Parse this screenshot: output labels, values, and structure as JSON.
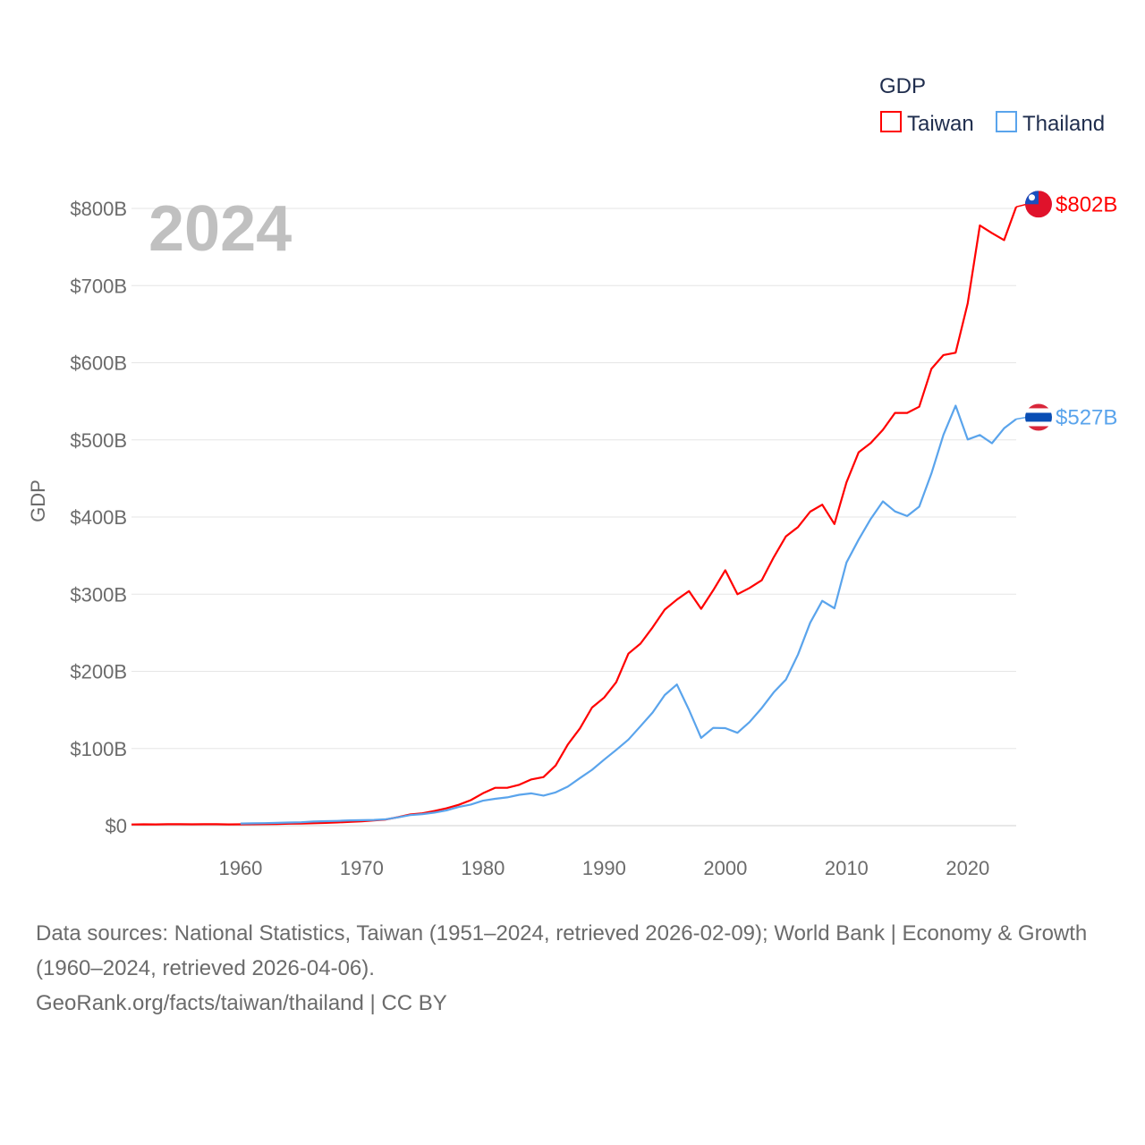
{
  "chart_data": {
    "type": "line",
    "title": "GDP",
    "ylabel": "GDP",
    "xlabel": "",
    "year_label": "2024",
    "xlim": [
      1951,
      2024
    ],
    "ylim": [
      0,
      800
    ],
    "y_unit": "billion USD",
    "grid": true,
    "legend_placement": "top-right",
    "legend_title": "GDP",
    "x_ticks": [
      1960,
      1970,
      1980,
      1990,
      2000,
      2010,
      2020
    ],
    "x_tick_labels": [
      "1960",
      "1970",
      "1980",
      "1990",
      "2000",
      "2010",
      "2020"
    ],
    "y_ticks": [
      0,
      100,
      200,
      300,
      400,
      500,
      600,
      700,
      800
    ],
    "y_tick_labels": [
      "$0",
      "$100B",
      "$200B",
      "$300B",
      "$400B",
      "$500B",
      "$600B",
      "$700B",
      "$800B"
    ],
    "series": [
      {
        "name": "Taiwan",
        "color": "#ff0000",
        "end_label": "$802B",
        "flag": "taiwan-flag",
        "start_year": 1951,
        "values": [
          1.5,
          1.7,
          1.6,
          1.8,
          1.9,
          1.7,
          1.8,
          1.8,
          1.6,
          1.7,
          1.8,
          2.0,
          2.2,
          2.5,
          2.8,
          3.1,
          3.6,
          4.2,
          4.9,
          5.7,
          6.7,
          8.0,
          11.0,
          14.5,
          16.0,
          19.0,
          22.5,
          27.0,
          33.0,
          42.0,
          49.0,
          49.0,
          53.0,
          60.0,
          63.0,
          78.0,
          105.0,
          126.0,
          153.0,
          166.0,
          186.0,
          223.0,
          236.0,
          257.0,
          280.0,
          293.0,
          304.0,
          281.0,
          305.0,
          331.0,
          300.0,
          308.0,
          318.0,
          348.0,
          375.0,
          387.0,
          407.0,
          416.0,
          391.0,
          445.0,
          484.0,
          496.0,
          513.0,
          535.0,
          535.0,
          543.0,
          592.0,
          610.0,
          613.0,
          677.0,
          778.0,
          768.0,
          759.0,
          802.0
        ]
      },
      {
        "name": "Thailand",
        "color": "#5aa4ec",
        "end_label": "$527B",
        "flag": "thailand-flag",
        "start_year": 1960,
        "values": [
          2.8,
          3.0,
          3.3,
          3.6,
          4.0,
          4.4,
          5.3,
          5.8,
          6.2,
          6.8,
          7.1,
          7.4,
          8.4,
          10.8,
          13.7,
          14.9,
          16.9,
          19.8,
          24.2,
          27.4,
          32.4,
          34.8,
          36.6,
          40.0,
          41.8,
          38.9,
          43.1,
          50.5,
          61.7,
          72.3,
          85.6,
          98.2,
          111.5,
          128.9,
          146.7,
          169.3,
          183.0,
          150.2,
          113.7,
          126.7,
          126.4,
          120.3,
          134.3,
          152.3,
          172.9,
          189.3,
          221.8,
          262.9,
          291.4,
          281.7,
          341.1,
          370.8,
          397.6,
          420.3,
          407.3,
          401.3,
          413.4,
          456.4,
          506.6,
          544.3,
          500.5,
          506.3,
          495.6,
          515.0,
          527.0
        ]
      }
    ]
  },
  "footer": {
    "sources": "Data sources: National Statistics, Taiwan (1951–2024, retrieved 2026-02-09); World Bank | Economy & Growth (1960–2024, retrieved 2026-04-06).",
    "credit": "GeoRank.org/facts/taiwan/thailand | CC BY"
  }
}
